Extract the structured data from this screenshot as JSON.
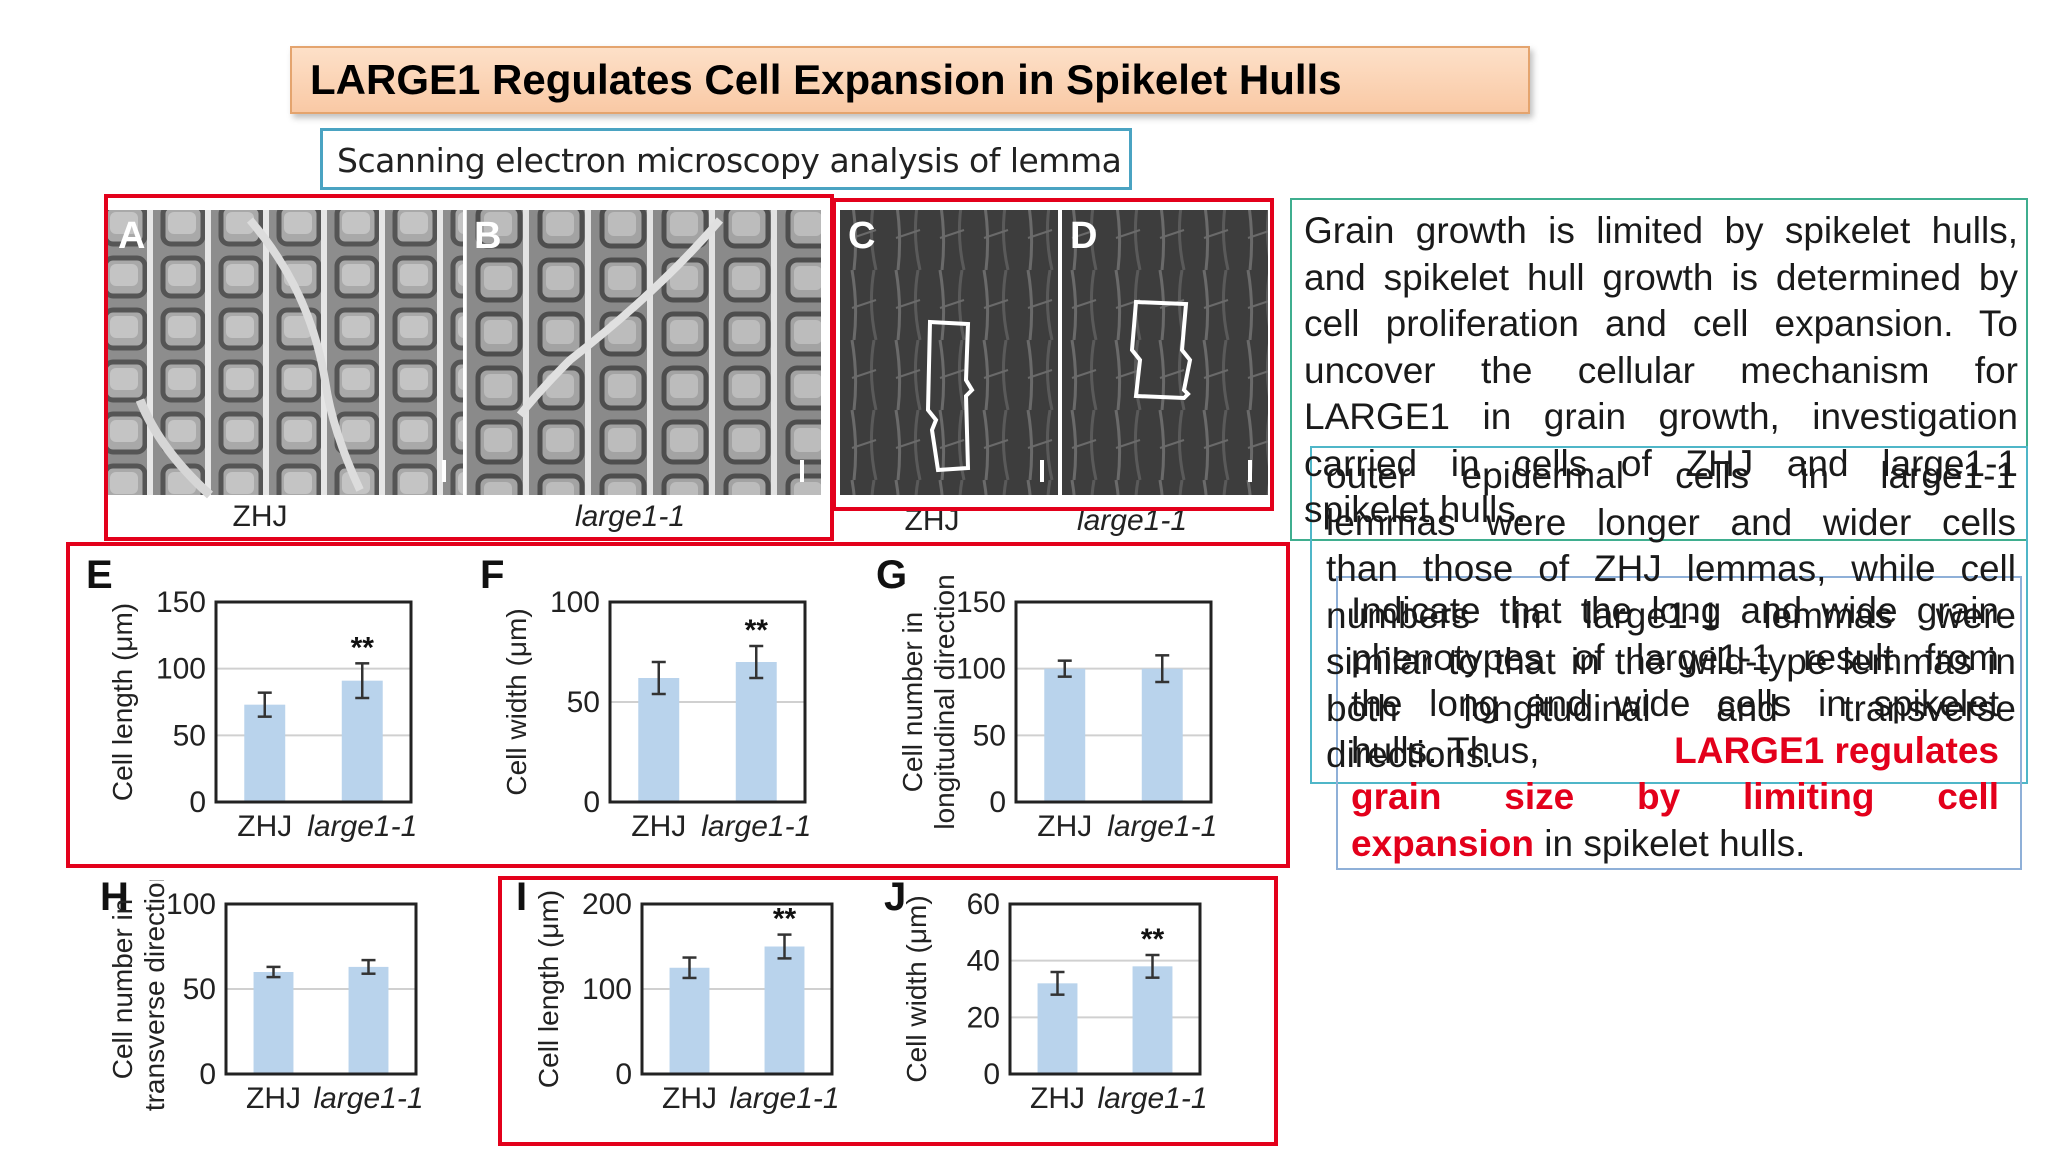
{
  "title": "LARGE1 Regulates Cell Expansion in Spikelet Hulls",
  "subtitle": "Scanning electron microscopy analysis of lemma",
  "micrographs": {
    "panels": [
      {
        "letter": "A",
        "label": "ZHJ"
      },
      {
        "letter": "B",
        "label": "large1-1"
      },
      {
        "letter": "C",
        "label": "ZHJ"
      },
      {
        "letter": "D",
        "label": "large1-1"
      }
    ]
  },
  "paragraphs": {
    "p1_lines": [
      "Grain growth is limited by spikelet hulls,",
      "and spikelet hull growth is determined by",
      "cell proliferation and cell expansion. To",
      "uncover the cellular mechanism for",
      "LARGE1 in grain growth, investigation",
      "carried in cells of ZHJ and large1-1"
    ],
    "p1_last": "spikelet hulls.",
    "p2_lines": [
      "outer epidermal cells in large1-1",
      "lemmas were longer and wider cells",
      "than those of ZHJ lemmas, while cell",
      "numbers in large1-1 lemmas were",
      "similar to that in the wild-type lemmas in",
      "both longitudinal and transverse"
    ],
    "p2_last": "directions.",
    "p3_lines": [
      "Indicate that the long and wide grain",
      "phenotypes of large1-1 result from",
      "the long and wide cells in spikelet"
    ],
    "p3_line4_a": "hulls. Thus,",
    "p3_line4_b": "LARGE1 regulates",
    "p3_line5": "grain size by limiting cell",
    "p3_line6_a": "expansion",
    "p3_line6_b": " in spikelet hulls."
  },
  "colors": {
    "bar": "#b9d3ec",
    "red_box": "#e3001b",
    "highlight": "#e3001b"
  },
  "chart_data": [
    {
      "panel": "E",
      "type": "bar",
      "categories": [
        "ZHJ",
        "large1-1"
      ],
      "values": [
        73,
        91
      ],
      "errors": [
        9,
        13
      ],
      "significance": [
        "",
        "**"
      ],
      "ylabel": "Cell length (μm)",
      "ylim": [
        0,
        150
      ],
      "yticks": [
        0,
        50,
        100,
        150
      ]
    },
    {
      "panel": "F",
      "type": "bar",
      "categories": [
        "ZHJ",
        "large1-1"
      ],
      "values": [
        62,
        70
      ],
      "errors": [
        8,
        8
      ],
      "significance": [
        "",
        "**"
      ],
      "ylabel": "Cell width (μm)",
      "ylim": [
        0,
        100
      ],
      "yticks": [
        0,
        50,
        100
      ]
    },
    {
      "panel": "G",
      "type": "bar",
      "categories": [
        "ZHJ",
        "large1-1"
      ],
      "values": [
        100,
        100
      ],
      "errors": [
        6,
        10
      ],
      "significance": [
        "",
        ""
      ],
      "ylabel": "Cell number in longitudinal direction",
      "ylim": [
        0,
        150
      ],
      "yticks": [
        0,
        50,
        100,
        150
      ]
    },
    {
      "panel": "H",
      "type": "bar",
      "categories": [
        "ZHJ",
        "large1-1"
      ],
      "values": [
        60,
        63
      ],
      "errors": [
        3,
        4
      ],
      "significance": [
        "",
        ""
      ],
      "ylabel": "Cell number in transverse direction",
      "ylim": [
        0,
        100
      ],
      "yticks": [
        0,
        50,
        100
      ]
    },
    {
      "panel": "I",
      "type": "bar",
      "categories": [
        "ZHJ",
        "large1-1"
      ],
      "values": [
        125,
        150
      ],
      "errors": [
        12,
        14
      ],
      "significance": [
        "",
        "**"
      ],
      "ylabel": "Cell length (μm)",
      "ylim": [
        0,
        200
      ],
      "yticks": [
        0,
        100,
        200
      ]
    },
    {
      "panel": "J",
      "type": "bar",
      "categories": [
        "ZHJ",
        "large1-1"
      ],
      "values": [
        32,
        38
      ],
      "errors": [
        4,
        4
      ],
      "significance": [
        "",
        "**"
      ],
      "ylabel": "Cell width (μm)",
      "ylim": [
        0,
        60
      ],
      "yticks": [
        0,
        20,
        40,
        60
      ]
    }
  ]
}
